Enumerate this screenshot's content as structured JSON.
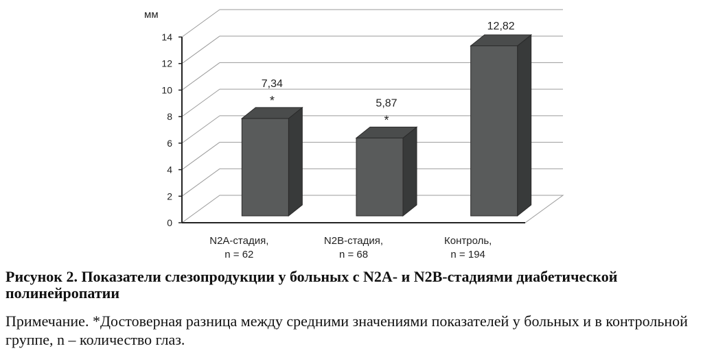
{
  "chart_data": {
    "type": "bar",
    "ylabel": "мм",
    "ylim": [
      0,
      14
    ],
    "yticks": [
      0,
      2,
      4,
      6,
      8,
      10,
      12,
      14
    ],
    "grid": true,
    "style": "3d",
    "bar_color": "#595b5b",
    "categories": [
      [
        "N2A-стадия,",
        "n = 62"
      ],
      [
        "N2B-стадия,",
        "n = 68"
      ],
      [
        "Контроль,",
        "n = 194"
      ]
    ],
    "values": [
      7.34,
      5.87,
      12.82
    ],
    "value_labels": [
      "7,34",
      "5,87",
      "12,82"
    ],
    "markers": [
      "*",
      "*",
      ""
    ]
  },
  "caption": {
    "title": "Рисунок 2. Показатели слезопродукции у больных с N2A- и N2B-стадиями диабетической полинейропатии",
    "note": "Примечание. *Достоверная разница между средними значениями показателей у больных и в контрольной группе, n – количество глаз."
  }
}
